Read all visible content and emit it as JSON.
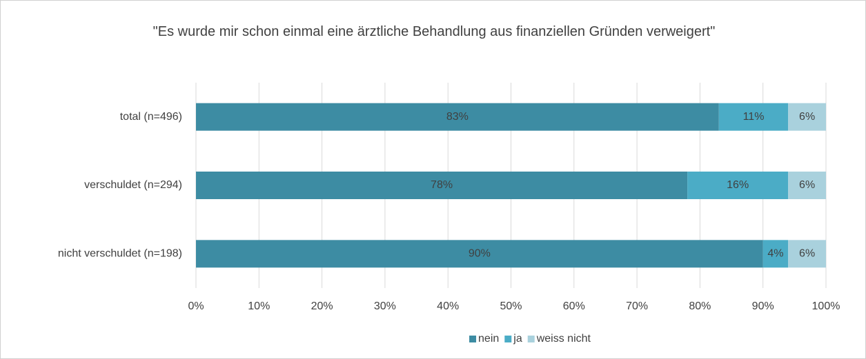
{
  "chart_data": {
    "type": "stacked_bar_horizontal",
    "title": "\"Es wurde mir schon einmal eine ärztliche Behandlung aus finanziellen Gründen verweigert\"",
    "categories": [
      "total (n=496)",
      "verschuldet (n=294)",
      "nicht verschuldet (n=198)"
    ],
    "series": [
      {
        "name": "nein",
        "color": "#3d8ca3",
        "values": [
          83,
          78,
          90
        ],
        "value_labels": [
          "83%",
          "78%",
          "90%"
        ]
      },
      {
        "name": "ja",
        "color": "#4bacc6",
        "values": [
          11,
          16,
          4
        ],
        "value_labels": [
          "11%",
          "16%",
          "4%"
        ]
      },
      {
        "name": "weiss nicht",
        "color": "#a9d1dd",
        "values": [
          6,
          6,
          6
        ],
        "value_labels": [
          "6%",
          "6%",
          "6%"
        ]
      }
    ],
    "xlim": [
      0,
      100
    ],
    "xticks": [
      {
        "value": 0,
        "label": "0%"
      },
      {
        "value": 10,
        "label": "10%"
      },
      {
        "value": 20,
        "label": "20%"
      },
      {
        "value": 30,
        "label": "30%"
      },
      {
        "value": 40,
        "label": "40%"
      },
      {
        "value": 50,
        "label": "50%"
      },
      {
        "value": 60,
        "label": "60%"
      },
      {
        "value": 70,
        "label": "70%"
      },
      {
        "value": 80,
        "label": "80%"
      },
      {
        "value": 90,
        "label": "90%"
      },
      {
        "value": 100,
        "label": "100%"
      }
    ],
    "grid": true,
    "legend": "bottom"
  }
}
